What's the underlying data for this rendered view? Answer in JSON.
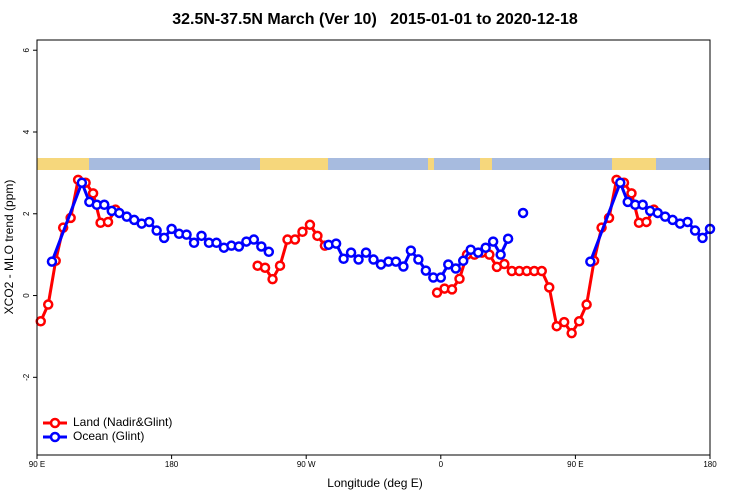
{
  "chart_data": {
    "type": "line",
    "title": "32.5N-37.5N March (Ver 10)   2015-01-01 to 2020-12-18",
    "x_label": "Longitude (deg E)",
    "y_label": "XCO2 - MLO trend (ppm)",
    "xlim": [
      90,
      540
    ],
    "ylim": [
      -3.9,
      6.25
    ],
    "xticks": [
      {
        "value": 90,
        "label": "90 E"
      },
      {
        "value": 180,
        "label": "180"
      },
      {
        "value": 270,
        "label": "90 W"
      },
      {
        "value": 360,
        "label": "0"
      },
      {
        "value": 450,
        "label": "90 E"
      },
      {
        "value": 540,
        "label": "180"
      }
    ],
    "yticks": [
      -2,
      0,
      2,
      4,
      6
    ],
    "legend": "bottomleft",
    "series": [
      {
        "name": "Land (Nadir&Glint)",
        "color": "#ff0000",
        "x": [
          92.5,
          97.5,
          102.5,
          107.5,
          112.5,
          117.5,
          122.5,
          127.5,
          132.5,
          137.5,
          142.5,
          147.5,
          237.5,
          242.5,
          247.5,
          252.5,
          257.5,
          262.5,
          267.5,
          272.5,
          277.5,
          282.5,
          287.5,
          357.5,
          362.5,
          367.5,
          372.5,
          377.5,
          382.5,
          387.5,
          392.5,
          397.5,
          402.5,
          407.5,
          412.5,
          417.5,
          422.5,
          427.5,
          432.5,
          437.5,
          442.5,
          447.5,
          452.5,
          457.5,
          462.5,
          467.5,
          472.5,
          477.5,
          482.5,
          487.5,
          492.5,
          497.5,
          502.5
        ],
        "values": [
          -0.63,
          -0.22,
          0.85,
          1.66,
          1.9,
          2.83,
          2.76,
          2.5,
          1.78,
          1.8,
          2.1,
          null,
          0.73,
          0.68,
          0.4,
          0.73,
          1.37,
          1.37,
          1.56,
          1.73,
          1.46,
          1.22,
          null,
          0.07,
          0.17,
          0.15,
          0.41,
          1.0,
          1.0,
          1.05,
          1.0,
          0.7,
          0.77,
          0.6,
          0.6,
          0.6,
          0.6,
          0.6,
          0.2,
          -0.75,
          -0.65,
          -0.92,
          -0.63,
          -0.22,
          0.85,
          1.66,
          1.9,
          2.83,
          2.76,
          2.5,
          1.78,
          1.8,
          2.1
        ]
      },
      {
        "name": "Ocean (Glint)",
        "color": "#0000ff",
        "x": [
          100,
          120,
          125,
          130,
          135,
          140,
          145,
          150,
          155,
          160,
          165,
          170,
          175,
          180,
          185,
          190,
          195,
          200,
          205,
          210,
          215,
          220,
          225,
          230,
          235,
          240,
          245,
          250,
          285,
          290,
          295,
          300,
          305,
          310,
          315,
          320,
          325,
          330,
          335,
          340,
          345,
          350,
          355,
          360,
          365,
          370,
          375,
          380,
          385,
          390,
          395,
          400,
          405,
          410,
          415,
          420,
          460,
          480,
          485,
          490,
          495,
          500,
          505,
          510,
          515,
          520,
          525,
          530,
          535,
          540
        ],
        "values": [
          0.83,
          2.76,
          2.29,
          2.22,
          2.22,
          2.07,
          2.02,
          1.93,
          1.85,
          1.76,
          1.8,
          1.59,
          1.41,
          1.63,
          1.51,
          1.49,
          1.29,
          1.46,
          1.29,
          1.29,
          1.17,
          1.22,
          1.2,
          1.32,
          1.37,
          1.2,
          1.07,
          null,
          1.24,
          1.27,
          0.9,
          1.05,
          0.88,
          1.05,
          0.88,
          0.76,
          0.83,
          0.83,
          0.71,
          1.1,
          0.88,
          0.61,
          0.44,
          0.44,
          0.76,
          0.66,
          0.85,
          1.12,
          1.05,
          1.17,
          1.32,
          1.0,
          1.39,
          null,
          2.02,
          null,
          0.83,
          2.76,
          2.29,
          2.22,
          2.22,
          2.07,
          2.02,
          1.93,
          1.85,
          1.76,
          1.8,
          1.59,
          1.41,
          1.63
        ]
      }
    ]
  }
}
